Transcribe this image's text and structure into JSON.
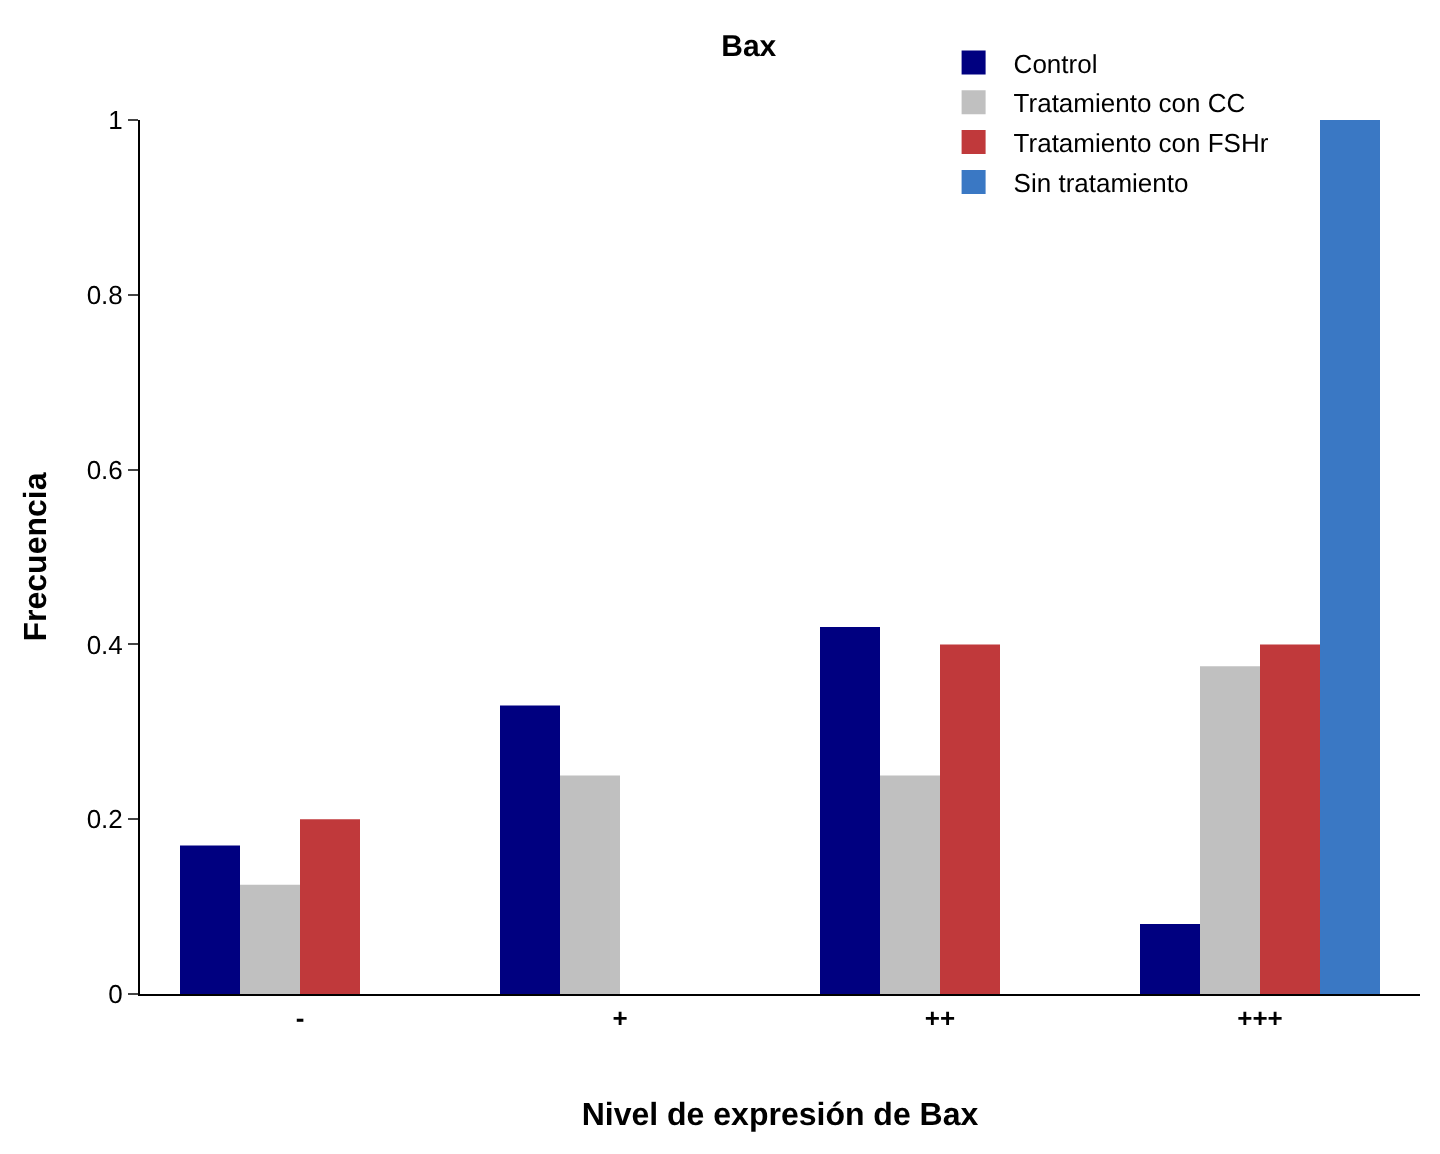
{
  "chart_data": {
    "type": "bar",
    "title": "Bax",
    "xlabel": "Nivel de expresión de Bax",
    "ylabel": "Frecuencia",
    "categories": [
      "-",
      "+",
      "++",
      "+++"
    ],
    "series": [
      {
        "name": "Control",
        "color": "#000080",
        "values": [
          0.17,
          0.33,
          0.42,
          0.08
        ]
      },
      {
        "name": "Tratamiento con CC",
        "color": "#c0c0c0",
        "values": [
          0.125,
          0.25,
          0.25,
          0.375
        ]
      },
      {
        "name": "Tratamiento con FSHr",
        "color": "#c0393b",
        "values": [
          0.2,
          0,
          0.4,
          0.4
        ]
      },
      {
        "name": "Sin tratamiento",
        "color": "#3a78c4",
        "values": [
          0,
          0,
          0,
          1
        ]
      }
    ],
    "ylim": [
      0,
      1
    ],
    "yticks": [
      0,
      0.2,
      0.4,
      0.6,
      0.8,
      1
    ],
    "legend": "top right"
  }
}
